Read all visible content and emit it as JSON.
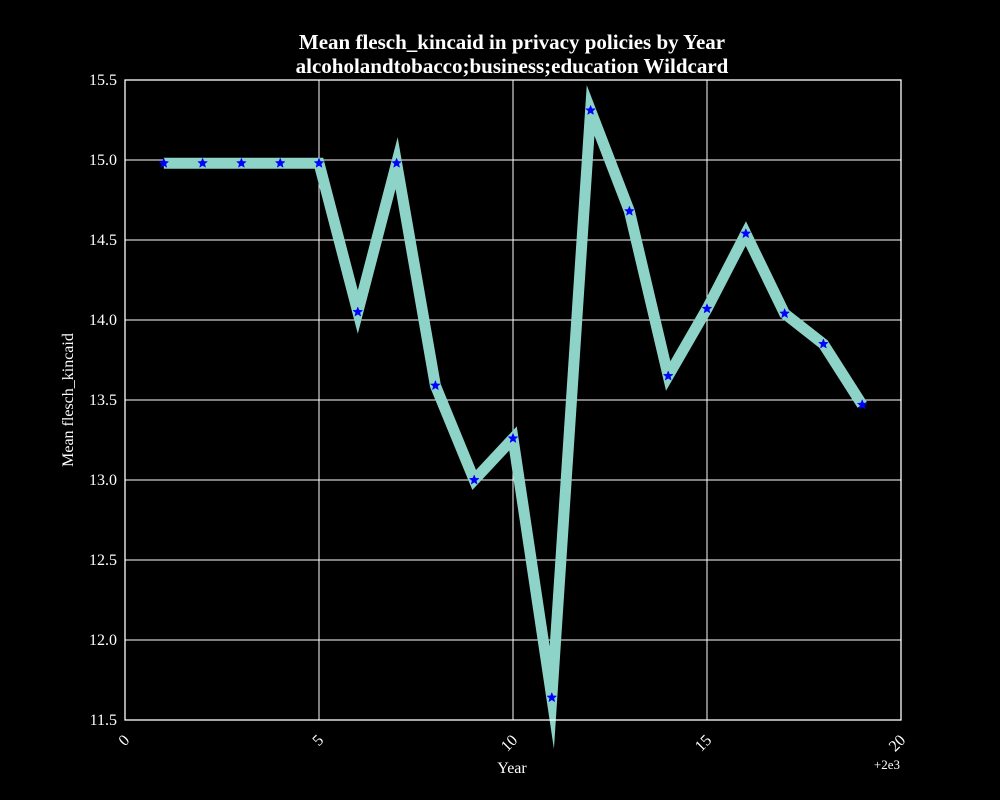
{
  "chart_data": {
    "type": "line",
    "title": "Mean flesch_kincaid in privacy policies by Year",
    "subtitle": "alcoholandtobacco;business;education Wildcard",
    "xlabel": "Year",
    "ylabel": "Mean flesch_kincaid",
    "x_offset_label": "+2e3",
    "xlim": [
      0,
      20
    ],
    "ylim": [
      11.5,
      15.5
    ],
    "x_ticks": [
      "0",
      "5",
      "10",
      "15",
      "20"
    ],
    "y_ticks": [
      "11.5",
      "12.0",
      "12.5",
      "13.0",
      "13.5",
      "14.0",
      "14.5",
      "15.0",
      "15.5"
    ],
    "grid": true,
    "background_color": "#000000",
    "line_color": "#8dd3c7",
    "marker_color": "#0000ff",
    "marker": "star",
    "x": [
      1,
      2,
      3,
      4,
      5,
      6,
      7,
      8,
      9,
      10,
      11,
      12,
      13,
      14,
      15,
      16,
      17,
      18,
      19
    ],
    "y": [
      14.98,
      14.98,
      14.98,
      14.98,
      14.98,
      14.05,
      14.98,
      13.59,
      13.0,
      13.26,
      11.64,
      15.31,
      14.68,
      13.65,
      14.07,
      14.54,
      14.04,
      13.85,
      13.47
    ]
  }
}
